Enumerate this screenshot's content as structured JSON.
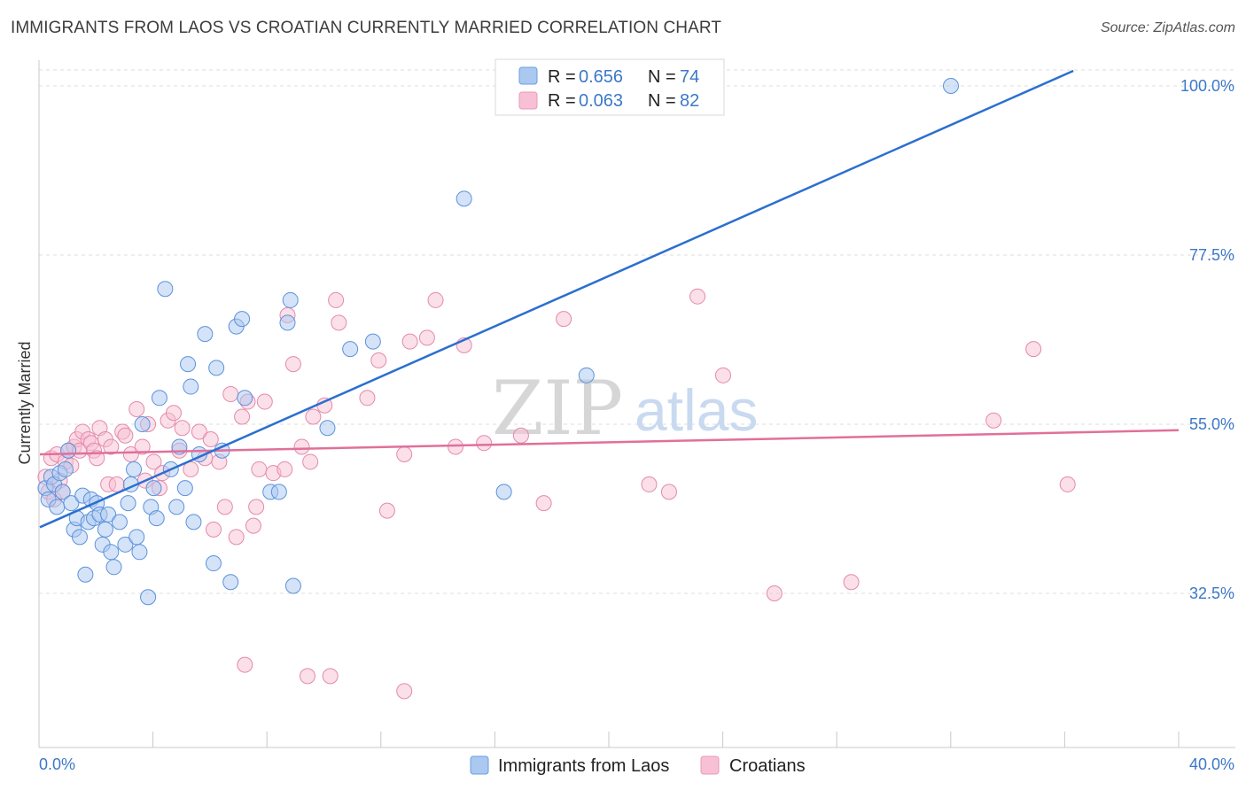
{
  "header": {
    "title": "IMMIGRANTS FROM LAOS VS CROATIAN CURRENTLY MARRIED CORRELATION CHART",
    "source": "Source: ZipAtlas.com"
  },
  "watermark": {
    "zip": "ZIP",
    "atlas": "atlas"
  },
  "colors": {
    "blue_fill": "#aac8f0",
    "blue_line": "#2b6fcf",
    "pink_fill": "#f8c0d4",
    "pink_line": "#e0709a",
    "grid": "#dcdcdc",
    "tick_text": "#3c78c8"
  },
  "chart_data": {
    "type": "scatter",
    "title": "IMMIGRANTS FROM LAOS VS CROATIAN CURRENTLY MARRIED CORRELATION CHART",
    "xlabel": "",
    "ylabel": "Currently Married",
    "xlim": [
      0,
      40
    ],
    "ylim": [
      16,
      102
    ],
    "x_tick_labels": [
      "0.0%",
      "40.0%"
    ],
    "y_ticks": [
      32.5,
      55.0,
      77.5,
      100.0
    ],
    "y_tick_labels": [
      "32.5%",
      "55.0%",
      "77.5%",
      "100.0%"
    ],
    "grid": "horizontal dashed",
    "legend_position": "top-center",
    "legend": [
      {
        "r_label": "R =",
        "r_value": "0.656",
        "n_label": "N =",
        "n_value": "74"
      },
      {
        "r_label": "R =",
        "r_value": "0.063",
        "n_label": "N =",
        "n_value": "82"
      }
    ],
    "series": [
      {
        "name": "Immigrants from Laos",
        "color": "#aac8f0",
        "trend": {
          "x": [
            0,
            36.3
          ],
          "y": [
            41.3,
            102
          ]
        },
        "points": [
          [
            0.2,
            46.5
          ],
          [
            0.3,
            45.0
          ],
          [
            0.4,
            48.0
          ],
          [
            0.5,
            47.0
          ],
          [
            0.6,
            44.0
          ],
          [
            0.7,
            48.5
          ],
          [
            0.8,
            46.0
          ],
          [
            0.9,
            49.0
          ],
          [
            1.0,
            51.5
          ],
          [
            1.1,
            44.5
          ],
          [
            1.2,
            41.0
          ],
          [
            1.3,
            42.5
          ],
          [
            1.4,
            40.0
          ],
          [
            1.5,
            45.5
          ],
          [
            1.6,
            35.0
          ],
          [
            1.7,
            42.0
          ],
          [
            1.8,
            45.0
          ],
          [
            1.9,
            42.5
          ],
          [
            2.0,
            44.5
          ],
          [
            2.1,
            43.0
          ],
          [
            2.2,
            39.0
          ],
          [
            2.3,
            41.0
          ],
          [
            2.4,
            43.0
          ],
          [
            2.5,
            38.0
          ],
          [
            2.6,
            36.0
          ],
          [
            2.8,
            42.0
          ],
          [
            3.0,
            39.0
          ],
          [
            3.1,
            44.5
          ],
          [
            3.2,
            47.0
          ],
          [
            3.3,
            49.0
          ],
          [
            3.4,
            40.0
          ],
          [
            3.5,
            38.0
          ],
          [
            3.6,
            55.0
          ],
          [
            3.8,
            32.0
          ],
          [
            3.9,
            44.0
          ],
          [
            4.0,
            46.5
          ],
          [
            4.1,
            42.5
          ],
          [
            4.2,
            58.5
          ],
          [
            4.4,
            73.0
          ],
          [
            4.6,
            49.0
          ],
          [
            4.8,
            44.0
          ],
          [
            4.9,
            52.0
          ],
          [
            5.1,
            46.5
          ],
          [
            5.2,
            63.0
          ],
          [
            5.3,
            60.0
          ],
          [
            5.4,
            42.0
          ],
          [
            5.6,
            51.0
          ],
          [
            5.8,
            67.0
          ],
          [
            6.1,
            36.5
          ],
          [
            6.2,
            62.5
          ],
          [
            6.4,
            51.5
          ],
          [
            6.7,
            34.0
          ],
          [
            6.9,
            68.0
          ],
          [
            7.1,
            69.0
          ],
          [
            7.2,
            58.5
          ],
          [
            8.1,
            46.0
          ],
          [
            8.4,
            46.0
          ],
          [
            8.7,
            68.5
          ],
          [
            8.8,
            71.5
          ],
          [
            8.9,
            33.5
          ],
          [
            10.1,
            54.5
          ],
          [
            10.9,
            65.0
          ],
          [
            11.7,
            66.0
          ],
          [
            14.9,
            85.0
          ],
          [
            16.3,
            46.0
          ],
          [
            19.2,
            61.5
          ],
          [
            32.0,
            100.0
          ]
        ]
      },
      {
        "name": "Croatians",
        "color": "#f8c0d4",
        "trend": {
          "x": [
            0,
            40
          ],
          "y": [
            51.0,
            54.2
          ]
        },
        "points": [
          [
            0.2,
            48.0
          ],
          [
            0.3,
            46.0
          ],
          [
            0.4,
            50.5
          ],
          [
            0.5,
            45.0
          ],
          [
            0.6,
            51.0
          ],
          [
            0.7,
            47.5
          ],
          [
            0.8,
            46.0
          ],
          [
            0.9,
            50.0
          ],
          [
            1.0,
            51.5
          ],
          [
            1.1,
            49.5
          ],
          [
            1.2,
            52.0
          ],
          [
            1.3,
            53.0
          ],
          [
            1.4,
            51.5
          ],
          [
            1.5,
            54.0
          ],
          [
            1.7,
            53.0
          ],
          [
            1.8,
            52.5
          ],
          [
            1.9,
            51.5
          ],
          [
            2.0,
            50.5
          ],
          [
            2.1,
            54.5
          ],
          [
            2.3,
            53.0
          ],
          [
            2.4,
            47.0
          ],
          [
            2.5,
            52.0
          ],
          [
            2.7,
            47.0
          ],
          [
            2.9,
            54.0
          ],
          [
            3.0,
            53.5
          ],
          [
            3.2,
            51.0
          ],
          [
            3.4,
            57.0
          ],
          [
            3.6,
            52.0
          ],
          [
            3.7,
            47.5
          ],
          [
            3.8,
            55.0
          ],
          [
            4.0,
            50.0
          ],
          [
            4.2,
            46.5
          ],
          [
            4.5,
            55.5
          ],
          [
            4.7,
            56.5
          ],
          [
            4.9,
            51.5
          ],
          [
            5.0,
            54.5
          ],
          [
            5.3,
            49.0
          ],
          [
            5.6,
            54.0
          ],
          [
            5.8,
            50.5
          ],
          [
            6.0,
            53.0
          ],
          [
            6.1,
            41.0
          ],
          [
            6.3,
            50.0
          ],
          [
            6.5,
            44.0
          ],
          [
            6.7,
            59.0
          ],
          [
            6.9,
            40.0
          ],
          [
            7.1,
            56.0
          ],
          [
            7.3,
            58.0
          ],
          [
            7.5,
            41.5
          ],
          [
            7.6,
            44.0
          ],
          [
            7.7,
            49.0
          ],
          [
            7.9,
            58.0
          ],
          [
            8.2,
            48.5
          ],
          [
            8.6,
            49.0
          ],
          [
            8.7,
            69.5
          ],
          [
            8.9,
            63.0
          ],
          [
            9.2,
            52.0
          ],
          [
            9.5,
            50.0
          ],
          [
            9.6,
            56.0
          ],
          [
            10.0,
            57.5
          ],
          [
            10.4,
            71.5
          ],
          [
            10.5,
            68.5
          ],
          [
            11.5,
            58.5
          ],
          [
            11.9,
            63.5
          ],
          [
            12.2,
            43.5
          ],
          [
            12.8,
            51.0
          ],
          [
            13.0,
            66.0
          ],
          [
            13.6,
            66.5
          ],
          [
            13.9,
            71.5
          ],
          [
            14.6,
            52.0
          ],
          [
            14.9,
            65.5
          ],
          [
            15.6,
            52.5
          ],
          [
            16.9,
            53.5
          ],
          [
            17.7,
            44.5
          ],
          [
            18.4,
            69.0
          ],
          [
            21.4,
            47.0
          ],
          [
            22.1,
            46.0
          ],
          [
            23.1,
            72.0
          ],
          [
            24.0,
            61.5
          ],
          [
            25.8,
            32.5
          ],
          [
            28.5,
            34.0
          ],
          [
            33.5,
            55.5
          ],
          [
            34.9,
            65.0
          ],
          [
            36.1,
            47.0
          ],
          [
            7.2,
            23.0
          ],
          [
            9.4,
            21.5
          ],
          [
            10.2,
            21.5
          ],
          [
            12.8,
            19.5
          ],
          [
            4.3,
            48.5
          ]
        ]
      }
    ]
  },
  "bottom_legend": [
    "Immigrants from Laos",
    "Croatians"
  ]
}
